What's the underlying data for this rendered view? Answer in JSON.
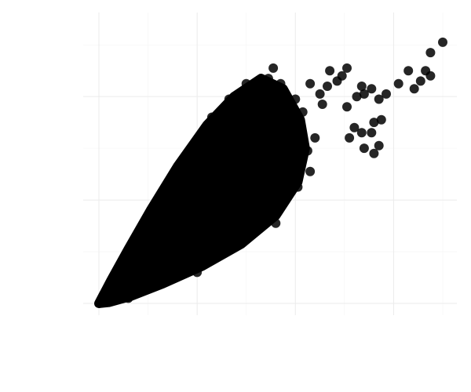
{
  "chart_data": {
    "type": "scatter",
    "title": "",
    "xlabel": "",
    "ylabel": "",
    "grid": true,
    "legend": "none",
    "point_color": "#000000",
    "point_opacity": 0.85,
    "xlim": [
      0,
      7
    ],
    "ylim": [
      0,
      5.2
    ],
    "x_major_ticks": [
      0,
      2,
      4,
      6
    ],
    "x_minor_ticks": [
      1,
      3,
      5,
      7
    ],
    "y_major_ticks": [
      0,
      2,
      4
    ],
    "y_minor_ticks": [
      1,
      3,
      5
    ],
    "dense_cloud_outline": [
      [
        0.0,
        0.0
      ],
      [
        0.25,
        0.45
      ],
      [
        0.6,
        1.05
      ],
      [
        1.05,
        1.8
      ],
      [
        1.6,
        2.65
      ],
      [
        2.2,
        3.45
      ],
      [
        2.75,
        4.0
      ],
      [
        3.3,
        4.35
      ],
      [
        3.75,
        4.15
      ],
      [
        4.1,
        3.55
      ],
      [
        4.2,
        3.0
      ],
      [
        4.05,
        2.35
      ],
      [
        3.6,
        1.7
      ],
      [
        2.9,
        1.15
      ],
      [
        2.1,
        0.72
      ],
      [
        1.3,
        0.38
      ],
      [
        0.65,
        0.14
      ],
      [
        0.2,
        0.02
      ]
    ],
    "points": [
      [
        7.0,
        5.05
      ],
      [
        6.75,
        4.85
      ],
      [
        6.65,
        4.5
      ],
      [
        6.75,
        4.4
      ],
      [
        6.3,
        4.5
      ],
      [
        6.55,
        4.3
      ],
      [
        6.42,
        4.15
      ],
      [
        6.1,
        4.25
      ],
      [
        5.85,
        4.05
      ],
      [
        5.7,
        3.95
      ],
      [
        5.75,
        3.55
      ],
      [
        5.6,
        3.5
      ],
      [
        5.55,
        3.3
      ],
      [
        5.35,
        3.3
      ],
      [
        5.7,
        3.05
      ],
      [
        5.6,
        2.9
      ],
      [
        5.4,
        3.0
      ],
      [
        5.2,
        3.4
      ],
      [
        5.1,
        3.2
      ],
      [
        5.05,
        3.8
      ],
      [
        5.25,
        4.0
      ],
      [
        5.55,
        4.15
      ],
      [
        5.35,
        4.2
      ],
      [
        5.4,
        4.05
      ],
      [
        5.05,
        4.55
      ],
      [
        4.95,
        4.4
      ],
      [
        4.85,
        4.3
      ],
      [
        4.7,
        4.5
      ],
      [
        4.65,
        4.2
      ],
      [
        4.5,
        4.05
      ],
      [
        4.55,
        3.85
      ],
      [
        4.3,
        4.25
      ],
      [
        3.55,
        4.55
      ],
      [
        3.45,
        4.35
      ],
      [
        3.7,
        4.25
      ],
      [
        4.0,
        3.95
      ],
      [
        4.15,
        3.7
      ],
      [
        4.1,
        3.4
      ],
      [
        4.4,
        3.2
      ],
      [
        4.25,
        2.95
      ],
      [
        4.3,
        2.55
      ],
      [
        4.05,
        2.25
      ],
      [
        3.85,
        2.1
      ],
      [
        3.55,
        1.9
      ],
      [
        3.6,
        1.55
      ],
      [
        2.45,
        1.0
      ],
      [
        2.0,
        0.6
      ],
      [
        1.5,
        0.55
      ],
      [
        2.3,
        3.6
      ],
      [
        2.65,
        3.95
      ],
      [
        2.9,
        4.05
      ],
      [
        3.0,
        4.25
      ],
      [
        1.95,
        2.95
      ],
      [
        1.6,
        2.6
      ],
      [
        1.3,
        2.1
      ],
      [
        0.6,
        0.1
      ]
    ]
  }
}
